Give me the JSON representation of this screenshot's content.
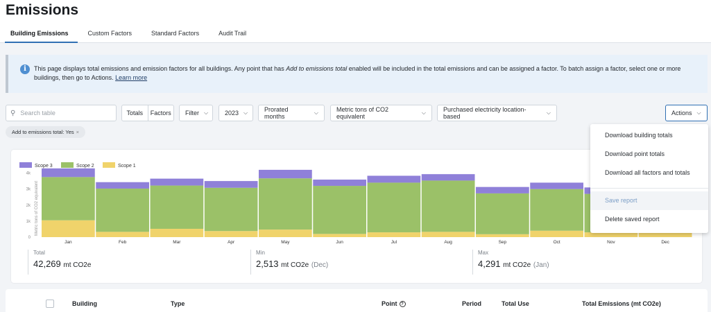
{
  "page": {
    "title": "Emissions"
  },
  "tabs": [
    {
      "label": "Building Emissions",
      "active": true
    },
    {
      "label": "Custom Factors",
      "active": false
    },
    {
      "label": "Standard Factors",
      "active": false
    },
    {
      "label": "Audit Trail",
      "active": false
    }
  ],
  "banner": {
    "icon": "info-icon",
    "text_1": "This page displays total emissions and emission factors for all buildings. Any point that has ",
    "text_em": "Add to emissions total",
    "text_2": " enabled will be included in the total emissions and can be assigned a factor. To batch assign a factor, select one or more buildings, then go to Actions. ",
    "link": "Learn more"
  },
  "toolbar": {
    "search_placeholder": "Search table",
    "totals_label": "Totals",
    "factors_label": "Factors",
    "filter_label": "Filter",
    "year_label": "2023",
    "proration_label": "Prorated months",
    "units_label": "Metric tons of CO2 equivalent",
    "electricity_label": "Purchased electricity location-based",
    "actions_label": "Actions"
  },
  "active_filter_chip": "Add to emissions total: Yes",
  "actions_menu": [
    {
      "label": "Download building totals",
      "disabled": false
    },
    {
      "label": "Download point totals",
      "disabled": false
    },
    {
      "label": "Download all factors and totals",
      "disabled": false
    },
    {
      "label": "Save report",
      "disabled": true
    },
    {
      "label": "Delete saved report",
      "disabled": false
    }
  ],
  "chart_data": {
    "type": "bar",
    "stacked": true,
    "categories": [
      "Jan",
      "Feb",
      "Mar",
      "Apr",
      "May",
      "Jun",
      "Jul",
      "Aug",
      "Sep",
      "Oct",
      "Nov",
      "Dec"
    ],
    "series": [
      {
        "name": "Scope 1",
        "color": "#f0d36b",
        "values": [
          1050,
          330,
          520,
          380,
          470,
          200,
          300,
          330,
          180,
          400,
          300,
          350
        ]
      },
      {
        "name": "Scope 2",
        "color": "#9bc168",
        "values": [
          2700,
          2700,
          2700,
          2700,
          3200,
          3000,
          3100,
          3200,
          2550,
          2600,
          2400,
          1700
        ]
      },
      {
        "name": "Scope 3",
        "color": "#8f80d9",
        "values": [
          540,
          400,
          430,
          420,
          530,
          390,
          430,
          400,
          400,
          400,
          400,
          460
        ]
      }
    ],
    "ylabel": "Metric tons of CO2 equivalent",
    "yticks": [
      "0",
      "1k",
      "2k",
      "3k",
      "4k"
    ],
    "ylim": [
      0,
      4500
    ],
    "legend_position": "top-left",
    "grid": false
  },
  "stats": [
    {
      "label": "Total",
      "value": "42,269",
      "unit": "mt CO2e",
      "month": ""
    },
    {
      "label": "Min",
      "value": "2,513",
      "unit": "mt CO2e",
      "month": "(Dec)"
    },
    {
      "label": "Max",
      "value": "4,291",
      "unit": "mt CO2e",
      "month": "(Jan)"
    }
  ],
  "table": {
    "columns": [
      "Building",
      "Type",
      "Point",
      "Period",
      "Total Use",
      "Total Emissions (mt CO2e)"
    ]
  }
}
